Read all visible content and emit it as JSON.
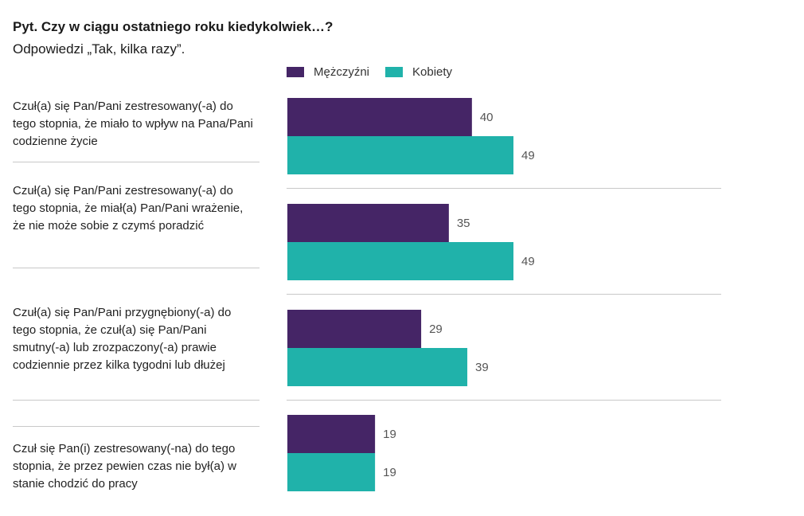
{
  "header": {
    "title": "Pyt. Czy w ciągu ostatniego roku kiedykolwiek…?",
    "subtitle": "Odpowiedzi „Tak, kilka razy”."
  },
  "colors": {
    "men": "#452566",
    "women": "#20b2aa"
  },
  "chart_data": {
    "type": "bar",
    "orientation": "horizontal",
    "categories": [
      "Czuł(a) się Pan/Pani zestresowany(-a) do tego stopnia, że miało to wpływ na Pana/Pani codzienne życie",
      "Czuł(a) się Pan/Pani zestresowany(-a) do tego stopnia, że miał(a) Pan/Pani wrażenie, że nie może sobie z czymś poradzić",
      "Czuł(a) się Pan/Pani przygnębiony(-a) do tego stopnia, że czuł(a) się Pan/Pani smutny(-a) lub zrozpaczony(-a) prawie codziennie przez kilka tygodni lub dłużej",
      "Czuł się Pan(i) zestresowany(-na) do tego stopnia, że przez pewien czas nie był(a) w stanie chodzić do pracy"
    ],
    "series": [
      {
        "name": "Mężczyźni",
        "values": [
          40,
          35,
          29,
          19
        ]
      },
      {
        "name": "Kobiety",
        "values": [
          49,
          49,
          39,
          19
        ]
      }
    ],
    "xlim": [
      0,
      100
    ],
    "legend_position": "top",
    "grid": false
  }
}
